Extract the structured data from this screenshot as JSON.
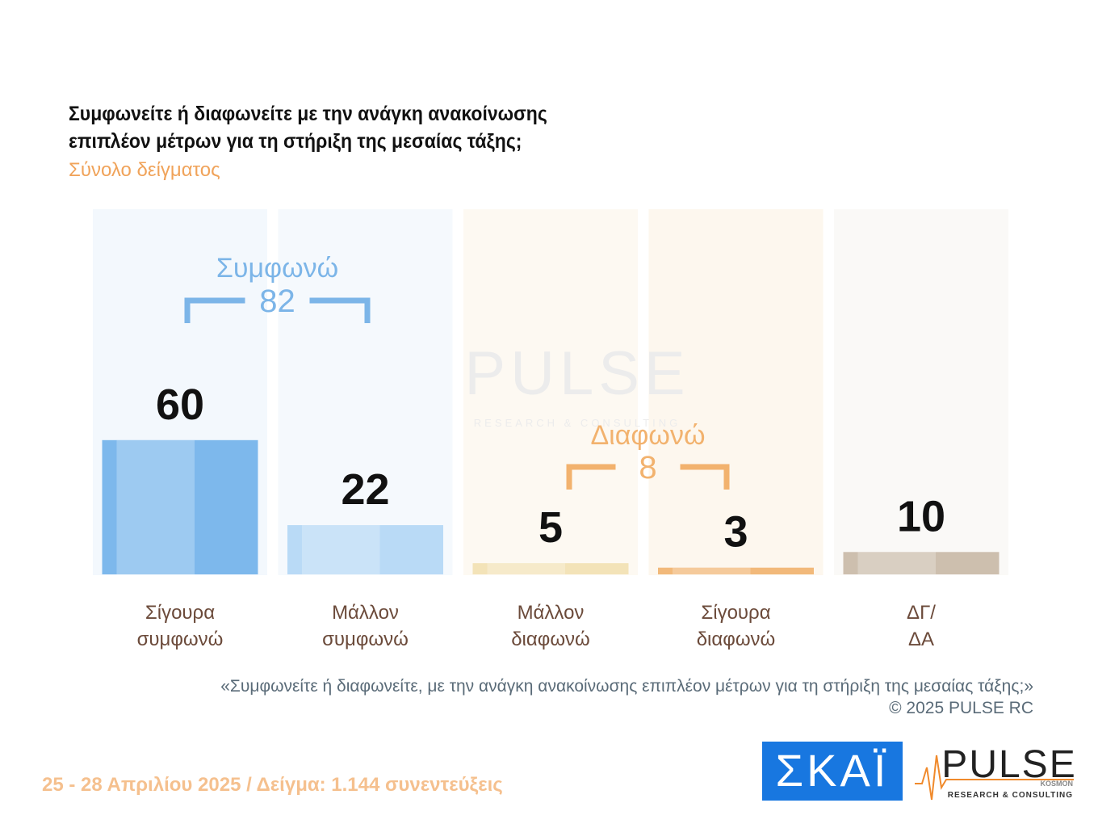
{
  "chart_data": {
    "type": "bar",
    "title": [
      "Συμφωνείτε ή διαφωνείτε με την ανάγκη ανακοίνωσης",
      "επιπλέον μέτρων για τη στήριξη της μεσαίας τάξης;"
    ],
    "subtitle": "Σύνολο δείγματος",
    "categories": [
      "Σίγουρα\nσυμφωνώ",
      "Μάλλον\nσυμφωνώ",
      "Μάλλον\nδιαφωνώ",
      "Σίγουρα\nδιαφωνώ",
      "ΔΓ/\nΔΑ"
    ],
    "values": [
      60,
      22,
      5,
      3,
      10
    ],
    "colors": [
      "#7db8ec",
      "#b9daf6",
      "#f3e3b8",
      "#f2b97a",
      "#cdbfae"
    ],
    "groups": [
      {
        "label": "Συμφωνώ",
        "value": 82,
        "color": "#7cb5e8"
      },
      {
        "label": "Διαφωνώ",
        "value": 8,
        "color": "#f2b26e"
      }
    ],
    "note": "«Συμφωνείτε ή διαφωνείτε, με την ανάγκη ανακοίνωσης επιπλέον μέτρων για τη στήριξη της μεσαίας τάξης;»",
    "copyright": "©  2025  PULSE RC",
    "footer": "25 - 28 Απριλίου 2025  /  Δείγμα:  1.144 συνεντεύξεις"
  },
  "logos": {
    "skai": "ΣΚΑΪ",
    "pulse": "PULSE",
    "pulse_sub": "RESEARCH & CONSULTING",
    "pulse_small": "KOSMON"
  }
}
